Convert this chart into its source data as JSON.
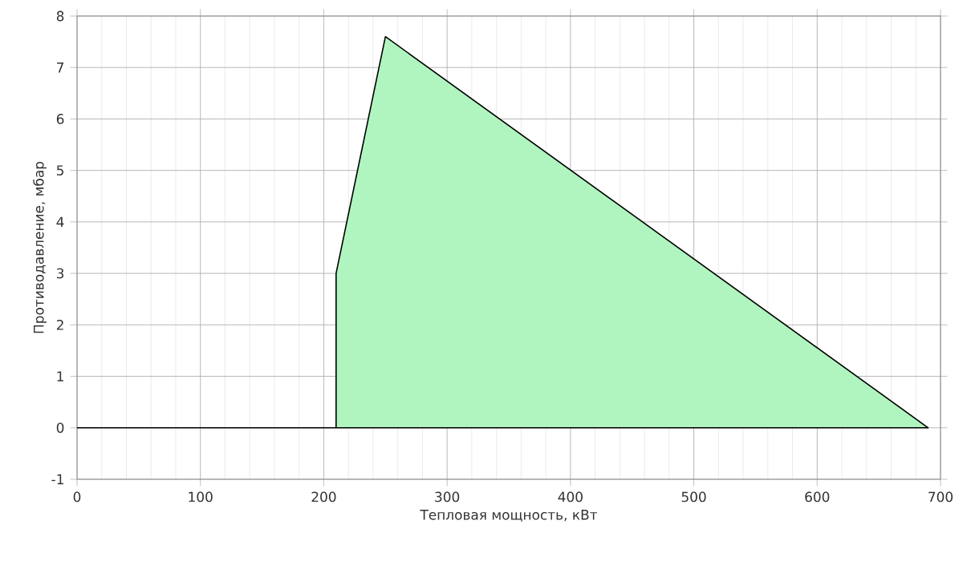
{
  "chart_data": {
    "type": "area",
    "xlabel": "Тепловая мощность, кВт",
    "ylabel": "Противодавление, мбар",
    "series": [
      {
        "color": "#b0f5bf",
        "x": [
          210,
          210,
          250,
          690
        ],
        "values": [
          0,
          3,
          7.6,
          0
        ]
      },
      {
        "type": "line",
        "color": "#000000",
        "x": [
          0,
          210
        ],
        "values": [
          0,
          0
        ]
      }
    ],
    "xlim": [
      0,
      700
    ],
    "xticks": [
      0,
      100,
      200,
      300,
      400,
      500,
      600,
      700
    ],
    "ylim": [
      -1,
      8
    ],
    "yticks": [
      -1,
      0,
      1,
      2,
      3,
      4,
      5,
      6,
      7,
      8
    ],
    "grid": true
  }
}
